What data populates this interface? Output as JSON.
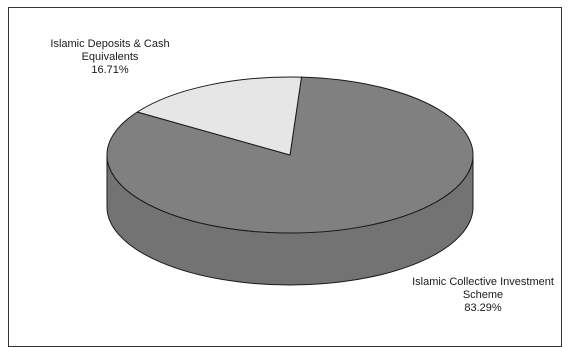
{
  "chart_data": {
    "type": "pie",
    "style": "3d",
    "slices": [
      {
        "label_lines": [
          "Islamic Collective Investment",
          "Scheme"
        ],
        "percent_label": "83.29%",
        "value": 83.29,
        "color": "#808080"
      },
      {
        "label_lines": [
          "Islamic Deposits & Cash",
          "Equivalents"
        ],
        "percent_label": "16.71%",
        "value": 16.71,
        "color": "#e6e6e6"
      }
    ],
    "legend": "none"
  }
}
